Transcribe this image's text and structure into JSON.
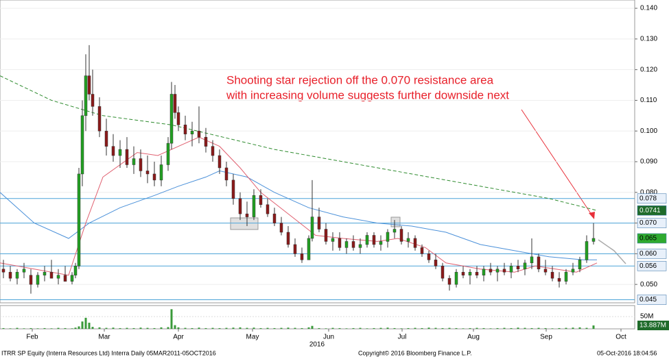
{
  "chart_data": {
    "type": "candlestick",
    "annotation": [
      "Shooting star rejection off the 0.070 resistance area",
      "with increasing volume suggests further downside next"
    ],
    "x": [
      1,
      3,
      5,
      7,
      9,
      11,
      13,
      15,
      17,
      19,
      21,
      22,
      23,
      24,
      25,
      26,
      27,
      29,
      31,
      33,
      35,
      37,
      39,
      41,
      43,
      45,
      47,
      49,
      50,
      51,
      52,
      54,
      56,
      58,
      60,
      62,
      64,
      66,
      68,
      70,
      72,
      74,
      76,
      78,
      80,
      82,
      84,
      86,
      88,
      90,
      91,
      93,
      95,
      97,
      99,
      101,
      103,
      105,
      107,
      109,
      111,
      113,
      115,
      117,
      119,
      121,
      123,
      125,
      127,
      129,
      131,
      133,
      135,
      137,
      139,
      141,
      143,
      145,
      147,
      149,
      151,
      153,
      155,
      157,
      159,
      161,
      163,
      165,
      167,
      169,
      171,
      173
    ],
    "open": [
      0.055,
      0.054,
      0.052,
      0.054,
      0.053,
      0.05,
      0.053,
      0.054,
      0.052,
      0.053,
      0.051,
      0.053,
      0.056,
      0.086,
      0.105,
      0.118,
      0.112,
      0.108,
      0.1,
      0.095,
      0.092,
      0.094,
      0.089,
      0.091,
      0.087,
      0.086,
      0.084,
      0.089,
      0.096,
      0.112,
      0.106,
      0.102,
      0.099,
      0.1,
      0.098,
      0.095,
      0.092,
      0.088,
      0.084,
      0.078,
      0.073,
      0.072,
      0.079,
      0.076,
      0.073,
      0.07,
      0.067,
      0.063,
      0.06,
      0.058,
      0.065,
      0.072,
      0.068,
      0.064,
      0.065,
      0.062,
      0.064,
      0.062,
      0.063,
      0.066,
      0.063,
      0.064,
      0.067,
      0.068,
      0.064,
      0.065,
      0.062,
      0.06,
      0.058,
      0.056,
      0.052,
      0.05,
      0.054,
      0.053,
      0.054,
      0.053,
      0.055,
      0.054,
      0.055,
      0.054,
      0.056,
      0.055,
      0.057,
      0.059,
      0.055,
      0.054,
      0.052,
      0.051,
      0.054,
      0.055,
      0.058,
      0.064
    ],
    "high": [
      0.058,
      0.056,
      0.055,
      0.057,
      0.055,
      0.054,
      0.056,
      0.058,
      0.055,
      0.056,
      0.054,
      0.057,
      0.088,
      0.11,
      0.125,
      0.128,
      0.12,
      0.111,
      0.104,
      0.099,
      0.097,
      0.098,
      0.095,
      0.094,
      0.092,
      0.09,
      0.092,
      0.098,
      0.116,
      0.115,
      0.108,
      0.105,
      0.103,
      0.108,
      0.101,
      0.097,
      0.094,
      0.09,
      0.086,
      0.08,
      0.077,
      0.081,
      0.081,
      0.078,
      0.075,
      0.072,
      0.069,
      0.065,
      0.062,
      0.066,
      0.084,
      0.075,
      0.07,
      0.067,
      0.067,
      0.065,
      0.066,
      0.065,
      0.067,
      0.067,
      0.066,
      0.068,
      0.071,
      0.069,
      0.067,
      0.066,
      0.063,
      0.061,
      0.06,
      0.057,
      0.053,
      0.055,
      0.056,
      0.055,
      0.056,
      0.056,
      0.057,
      0.056,
      0.057,
      0.057,
      0.058,
      0.058,
      0.065,
      0.06,
      0.058,
      0.056,
      0.054,
      0.055,
      0.057,
      0.059,
      0.066,
      0.07
    ],
    "low": [
      0.052,
      0.051,
      0.05,
      0.052,
      0.047,
      0.049,
      0.051,
      0.052,
      0.05,
      0.051,
      0.05,
      0.052,
      0.055,
      0.082,
      0.1,
      0.11,
      0.105,
      0.098,
      0.092,
      0.09,
      0.088,
      0.088,
      0.086,
      0.085,
      0.083,
      0.082,
      0.082,
      0.087,
      0.094,
      0.104,
      0.1,
      0.097,
      0.095,
      0.096,
      0.093,
      0.09,
      0.086,
      0.082,
      0.076,
      0.071,
      0.069,
      0.071,
      0.075,
      0.072,
      0.069,
      0.066,
      0.062,
      0.059,
      0.057,
      0.058,
      0.064,
      0.067,
      0.063,
      0.061,
      0.061,
      0.06,
      0.061,
      0.06,
      0.062,
      0.062,
      0.061,
      0.062,
      0.065,
      0.063,
      0.062,
      0.061,
      0.059,
      0.057,
      0.055,
      0.051,
      0.048,
      0.049,
      0.052,
      0.05,
      0.052,
      0.051,
      0.053,
      0.051,
      0.053,
      0.052,
      0.054,
      0.053,
      0.055,
      0.054,
      0.053,
      0.051,
      0.049,
      0.05,
      0.053,
      0.054,
      0.057,
      0.063
    ],
    "close": [
      0.054,
      0.052,
      0.054,
      0.055,
      0.05,
      0.053,
      0.054,
      0.052,
      0.053,
      0.051,
      0.053,
      0.056,
      0.086,
      0.105,
      0.118,
      0.112,
      0.108,
      0.1,
      0.095,
      0.092,
      0.094,
      0.089,
      0.091,
      0.087,
      0.086,
      0.084,
      0.089,
      0.096,
      0.112,
      0.106,
      0.102,
      0.099,
      0.1,
      0.098,
      0.095,
      0.092,
      0.088,
      0.084,
      0.078,
      0.073,
      0.072,
      0.079,
      0.076,
      0.073,
      0.07,
      0.067,
      0.063,
      0.06,
      0.058,
      0.065,
      0.072,
      0.068,
      0.064,
      0.065,
      0.062,
      0.064,
      0.062,
      0.063,
      0.066,
      0.063,
      0.064,
      0.067,
      0.068,
      0.064,
      0.065,
      0.062,
      0.06,
      0.058,
      0.056,
      0.052,
      0.05,
      0.054,
      0.053,
      0.054,
      0.053,
      0.055,
      0.054,
      0.055,
      0.054,
      0.056,
      0.055,
      0.057,
      0.059,
      0.055,
      0.054,
      0.052,
      0.051,
      0.054,
      0.055,
      0.058,
      0.064,
      0.065
    ],
    "volume": [
      3,
      2,
      4,
      2,
      3,
      2,
      3,
      2,
      4,
      3,
      2,
      5,
      10,
      30,
      45,
      25,
      8,
      6,
      4,
      5,
      3,
      4,
      3,
      5,
      4,
      3,
      6,
      7,
      80,
      15,
      6,
      4,
      3,
      5,
      3,
      4,
      3,
      4,
      5,
      6,
      4,
      5,
      3,
      4,
      3,
      4,
      5,
      4,
      3,
      6,
      12,
      3,
      2,
      4,
      3,
      2,
      3,
      4,
      2,
      3,
      4,
      5,
      3,
      2,
      3,
      4,
      3,
      5,
      4,
      3,
      4,
      3,
      2,
      3,
      4,
      3,
      2,
      3,
      4,
      3,
      5,
      4,
      3,
      4,
      3,
      2,
      3,
      4,
      5,
      6,
      4,
      13.887
    ],
    "volume_last_label": "13.887M",
    "up_color": "#22a022",
    "down_color": "#8b1a1a",
    "volume_color": "#3a9a3a",
    "moving_averages": [
      {
        "color": "#2e8b2e",
        "dashed": true,
        "x": [
          0,
          15,
          30,
          50,
          65,
          80,
          100,
          120,
          140,
          160,
          174
        ],
        "values": [
          0.118,
          0.11,
          0.105,
          0.102,
          0.098,
          0.094,
          0.09,
          0.086,
          0.082,
          0.078,
          0.0741
        ]
      },
      {
        "color": "#4a90d9",
        "dashed": false,
        "x": [
          0,
          10,
          20,
          26,
          35,
          45,
          52,
          60,
          64,
          72,
          80,
          90,
          100,
          110,
          120,
          130,
          140,
          150,
          160,
          170,
          174
        ],
        "values": [
          0.08,
          0.07,
          0.065,
          0.07,
          0.075,
          0.079,
          0.082,
          0.085,
          0.087,
          0.085,
          0.08,
          0.075,
          0.072,
          0.07,
          0.069,
          0.067,
          0.063,
          0.061,
          0.059,
          0.058,
          0.058
        ]
      },
      {
        "color": "#e06070",
        "dashed": false,
        "x": [
          0,
          10,
          20,
          25,
          30,
          40,
          46,
          52,
          58,
          64,
          70,
          76,
          84,
          92,
          100,
          110,
          116,
          124,
          130,
          140,
          150,
          156,
          162,
          168,
          174
        ],
        "values": [
          0.057,
          0.055,
          0.053,
          0.07,
          0.085,
          0.093,
          0.092,
          0.095,
          0.098,
          0.095,
          0.088,
          0.08,
          0.073,
          0.066,
          0.065,
          0.064,
          0.065,
          0.062,
          0.057,
          0.055,
          0.054,
          0.056,
          0.055,
          0.054,
          0.057
        ]
      }
    ],
    "levels": [
      {
        "value": 0.078,
        "label": "0.078",
        "line": true,
        "box": "#e8f0fa",
        "text": "#000"
      },
      {
        "value": 0.0741,
        "label": "0.0741",
        "line": false,
        "box": "#1f6b2a",
        "text": "#fff"
      },
      {
        "value": 0.07,
        "label": "0.070",
        "line": true,
        "box": "#e8f0fa",
        "text": "#000"
      },
      {
        "value": 0.065,
        "label": "0.065",
        "line": false,
        "box": "#2faa2f",
        "text": "#000"
      },
      {
        "value": 0.06,
        "label": "0.060",
        "line": true,
        "box": "#e8f0fa",
        "text": "#000"
      },
      {
        "value": 0.056,
        "label": "0.056",
        "line": true,
        "box": "#e8f0fa",
        "text": "#000"
      },
      {
        "value": 0.045,
        "label": "0.045",
        "line": true,
        "box": "#e8f0fa",
        "text": "#000"
      }
    ],
    "level_color": "#4aa3d8",
    "xlim": [
      0,
      185
    ],
    "xticks": [
      {
        "value": 9.4,
        "label": "Feb"
      },
      {
        "value": 30.4,
        "label": "Mar"
      },
      {
        "value": 52,
        "label": "Apr"
      },
      {
        "value": 73.6,
        "label": "May"
      },
      {
        "value": 95.8,
        "label": "Jun"
      },
      {
        "value": 117.2,
        "label": "Jul"
      },
      {
        "value": 138,
        "label": "Aug"
      },
      {
        "value": 159.2,
        "label": "Sep"
      },
      {
        "value": 181,
        "label": "Oct"
      }
    ],
    "year_label": "2016",
    "ylim": [
      0.044,
      0.1427
    ],
    "yticks": [
      {
        "value": 0.05,
        "label": "0.050"
      },
      {
        "value": 0.06,
        "label": "0.060"
      },
      {
        "value": 0.07,
        "label": "0.070"
      },
      {
        "value": 0.08,
        "label": "0.080"
      },
      {
        "value": 0.09,
        "label": "0.090"
      },
      {
        "value": 0.1,
        "label": "0.100"
      },
      {
        "value": 0.11,
        "label": "0.110"
      },
      {
        "value": 0.12,
        "label": "0.120"
      },
      {
        "value": 0.13,
        "label": "0.130"
      },
      {
        "value": 0.14,
        "label": "0.140"
      }
    ],
    "vlim": [
      0,
      92
    ],
    "vticks": [
      {
        "value": 50,
        "label": "50M"
      }
    ],
    "footer": [
      "ITRR SP Equity (Interra Resources Ltd) Interra  Daily 05MAR2011-05OCT2016",
      "Copyright© 2016 Bloomberg Finance L.P.",
      "05-Oct-2016 18:04:56"
    ]
  }
}
